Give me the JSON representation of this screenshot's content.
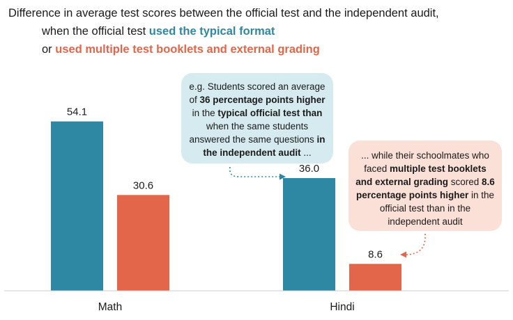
{
  "title": {
    "line1": "Difference in average test scores between the official test and the independent audit,",
    "line2_prefix": "when the official test ",
    "line2_highlight": "used the typical format",
    "line3_prefix": "or ",
    "line3_highlight": "used multiple test booklets and external grading"
  },
  "colors": {
    "typical": "#2e87a3",
    "multiple": "#e4664a",
    "bubble_blue": "#d6ebf0",
    "bubble_red": "#fbe0d8"
  },
  "annotations": {
    "blue": {
      "p1": "e.g. Students scored an average of ",
      "b1": "36 percentage points higher",
      "p2": " in the ",
      "b2": "typical official test than",
      "p3": " when the same students answered the same questions ",
      "b3": "in the independent audit",
      "p4": " ..."
    },
    "red": {
      "p1": "... while their schoolmates who faced ",
      "b1": "multiple test booklets and external grading",
      "p2": " scored ",
      "b2": "8.6 percentage points higher",
      "p3": " in the official test than in the independent audit"
    }
  },
  "chart_data": {
    "type": "bar",
    "categories": [
      "Math",
      "Hindi"
    ],
    "series": [
      {
        "values": [
          54.1,
          36.0
        ],
        "labels": [
          "54.1",
          "36.0"
        ],
        "color": "#2e87a3"
      },
      {
        "values": [
          30.6,
          8.6
        ],
        "labels": [
          "30.6",
          "8.6"
        ],
        "color": "#e4664a"
      }
    ],
    "ylim": [
      0,
      60
    ],
    "grid": false
  }
}
